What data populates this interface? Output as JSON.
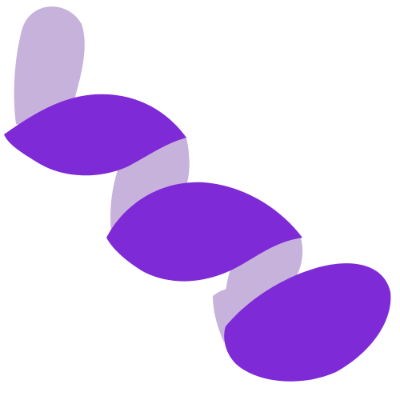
{
  "illustration": {
    "subject": "purple-helix-ribbon",
    "colors": {
      "background": "#ffffff",
      "front": "#7e2ad6",
      "back": "#c7b2dc"
    }
  }
}
